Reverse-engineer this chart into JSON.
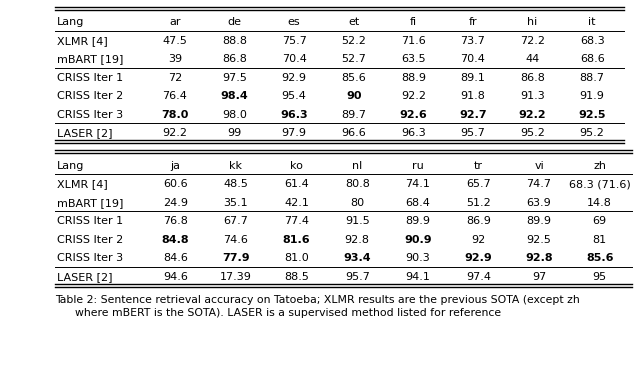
{
  "caption_line1": "Table 2: Sentence retrieval accuracy on Tatoeba; XLMR results are the previous SOTA (except zh",
  "caption_line2": "    where mBERT is the SOTA). LASER is a supervised method listed for reference",
  "table1_header": [
    "Lang",
    "ar",
    "de",
    "es",
    "et",
    "fi",
    "fr",
    "hi",
    "it"
  ],
  "table1_rows": [
    {
      "label": "XLMR [4]",
      "values": [
        "47.5",
        "88.8",
        "75.7",
        "52.2",
        "71.6",
        "73.7",
        "72.2",
        "68.3"
      ],
      "bold": []
    },
    {
      "label": "mBART [19]",
      "values": [
        "39",
        "86.8",
        "70.4",
        "52.7",
        "63.5",
        "70.4",
        "44",
        "68.6"
      ],
      "bold": []
    },
    {
      "label": "CRISS Iter 1",
      "values": [
        "72",
        "97.5",
        "92.9",
        "85.6",
        "88.9",
        "89.1",
        "86.8",
        "88.7"
      ],
      "bold": []
    },
    {
      "label": "CRISS Iter 2",
      "values": [
        "76.4",
        "98.4",
        "95.4",
        "90",
        "92.2",
        "91.8",
        "91.3",
        "91.9"
      ],
      "bold": [
        1,
        3
      ]
    },
    {
      "label": "CRISS Iter 3",
      "values": [
        "78.0",
        "98.0",
        "96.3",
        "89.7",
        "92.6",
        "92.7",
        "92.2",
        "92.5"
      ],
      "bold": [
        0,
        2,
        4,
        5,
        6,
        7
      ]
    },
    {
      "label": "LASER [2]",
      "values": [
        "92.2",
        "99",
        "97.9",
        "96.6",
        "96.3",
        "95.7",
        "95.2",
        "95.2"
      ],
      "bold": []
    }
  ],
  "t1_sep_before": [
    2,
    5
  ],
  "table2_header": [
    "Lang",
    "ja",
    "kk",
    "ko",
    "nl",
    "ru",
    "tr",
    "vi",
    "zh"
  ],
  "table2_rows": [
    {
      "label": "XLMR [4]",
      "values": [
        "60.6",
        "48.5",
        "61.4",
        "80.8",
        "74.1",
        "65.7",
        "74.7",
        "68.3 (71.6)"
      ],
      "bold": []
    },
    {
      "label": "mBART [19]",
      "values": [
        "24.9",
        "35.1",
        "42.1",
        "80",
        "68.4",
        "51.2",
        "63.9",
        "14.8"
      ],
      "bold": []
    },
    {
      "label": "CRISS Iter 1",
      "values": [
        "76.8",
        "67.7",
        "77.4",
        "91.5",
        "89.9",
        "86.9",
        "89.9",
        "69"
      ],
      "bold": []
    },
    {
      "label": "CRISS Iter 2",
      "values": [
        "84.8",
        "74.6",
        "81.6",
        "92.8",
        "90.9",
        "92",
        "92.5",
        "81"
      ],
      "bold": [
        0,
        2,
        4
      ]
    },
    {
      "label": "CRISS Iter 3",
      "values": [
        "84.6",
        "77.9",
        "81.0",
        "93.4",
        "90.3",
        "92.9",
        "92.8",
        "85.6"
      ],
      "bold": [
        1,
        3,
        5,
        6,
        7
      ]
    },
    {
      "label": "LASER [2]",
      "values": [
        "94.6",
        "17.39",
        "88.5",
        "95.7",
        "94.1",
        "97.4",
        "97",
        "95"
      ],
      "bold": []
    }
  ],
  "t2_sep_before": [
    2,
    5
  ],
  "font_size": 8.0,
  "caption_font_size": 7.8
}
